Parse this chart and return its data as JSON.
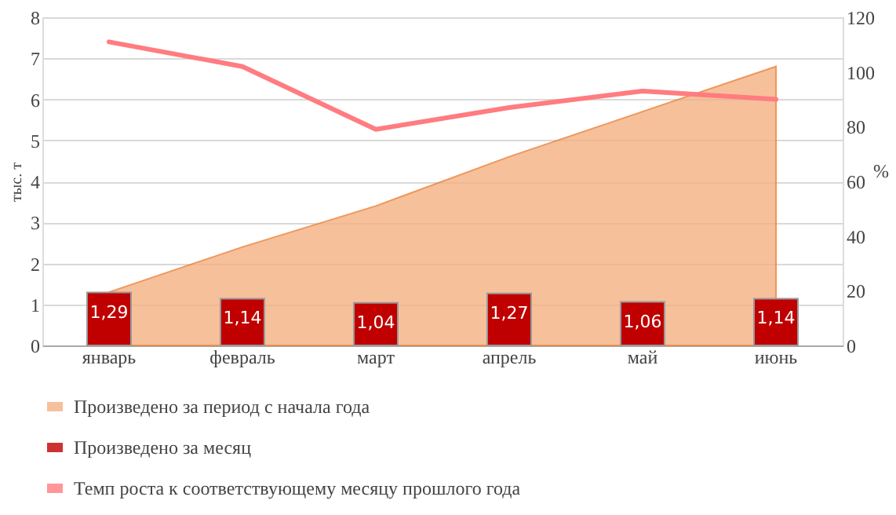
{
  "chart_data": {
    "type": "bar",
    "ylabel": "тыс. т",
    "y2label": "%",
    "categories": [
      "январь",
      "февраль",
      "март",
      "апрель",
      "май",
      "июнь"
    ],
    "series": [
      {
        "name": "Произведено за период с начала года",
        "type": "area",
        "color": "#f4b183",
        "values": [
          1.3,
          2.4,
          3.4,
          4.6,
          5.7,
          6.8
        ]
      },
      {
        "name": "Произведено за месяц",
        "color": "#c00000",
        "values": [
          1.29,
          1.14,
          1.04,
          1.27,
          1.06,
          1.14
        ],
        "value_labels": [
          "1,29",
          "1,14",
          "1,04",
          "1,27",
          "1,06",
          "1,14"
        ]
      },
      {
        "name": "Темп роста к соответствующему месяцу прошлого года",
        "type": "line",
        "axis": "y2",
        "color": "#ff7c80",
        "values": [
          111,
          102,
          79,
          87,
          93,
          90
        ]
      }
    ],
    "ylim": [
      0,
      8
    ],
    "yticks": [
      0,
      1,
      2,
      3,
      4,
      5,
      6,
      7,
      8
    ],
    "y2lim": [
      0,
      120
    ],
    "y2ticks": [
      0,
      20,
      40,
      60,
      80,
      100,
      120
    ],
    "grid": "y",
    "legend": "bottom"
  }
}
